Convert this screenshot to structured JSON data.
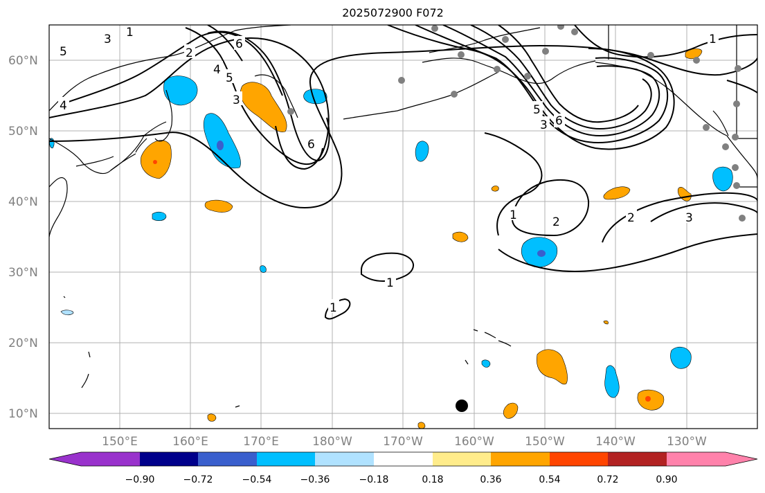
{
  "title": "2025072900 F072",
  "lat_labels": [
    "60°N",
    "50°N",
    "40°N",
    "30°N",
    "20°N",
    "10°N"
  ],
  "lon_labels": [
    "150°E",
    "160°E",
    "170°E",
    "180°W",
    "170°W",
    "160°W",
    "150°W",
    "140°W",
    "130°W"
  ],
  "colorbar": {
    "ticks": [
      "−0.90",
      "−0.72",
      "−0.54",
      "−0.36",
      "−0.18",
      "0.18",
      "0.36",
      "0.54",
      "0.72",
      "0.90"
    ],
    "colors": [
      "#9932cc",
      "#00008b",
      "#3a5fcd",
      "#00bfff",
      "#b0e2ff",
      "#ffffff",
      "#ffec8b",
      "#ffa500",
      "#ff4500",
      "#b22222",
      "#ff82ab"
    ]
  },
  "contour_labels": [
    "1",
    "2",
    "3",
    "4",
    "5",
    "6"
  ],
  "colors": {
    "grid": "#b0b0b0",
    "contour": "#000000",
    "station": "#808080",
    "marker": "#000000"
  }
}
